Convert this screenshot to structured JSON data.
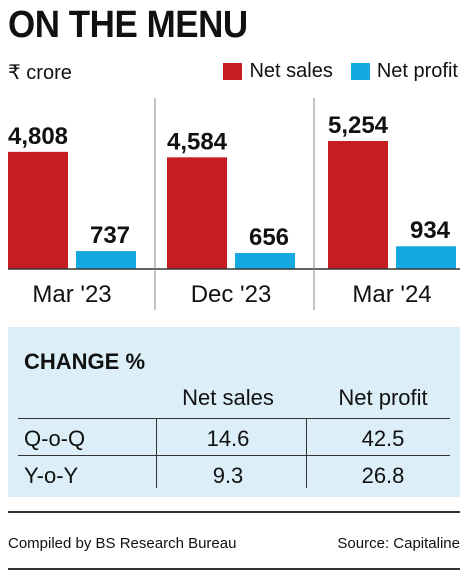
{
  "title": "ON THE MENU",
  "unit_label": "₹ crore",
  "legend": {
    "net_sales": "Net sales",
    "net_profit": "Net profit"
  },
  "colors": {
    "net_sales": "#c41e24",
    "net_profit": "#16a8e0",
    "box_bg": "#dceef8"
  },
  "chart_data": {
    "type": "bar",
    "categories": [
      "Mar '23",
      "Dec '23",
      "Mar '24"
    ],
    "series": [
      {
        "name": "Net sales",
        "values": [
          4808,
          4584,
          5254
        ],
        "labels": [
          "4,808",
          "4,584",
          "5,254"
        ]
      },
      {
        "name": "Net profit",
        "values": [
          737,
          656,
          934
        ],
        "labels": [
          "737",
          "656",
          "934"
        ]
      }
    ],
    "ylim": [
      0,
      5254
    ],
    "grid": false,
    "legend_position": "top-right"
  },
  "change_table": {
    "heading": "CHANGE %",
    "columns": [
      "Net sales",
      "Net profit"
    ],
    "rows": [
      {
        "label": "Q-o-Q",
        "net_sales": "14.6",
        "net_profit": "42.5"
      },
      {
        "label": "Y-o-Y",
        "net_sales": "9.3",
        "net_profit": "26.8"
      }
    ]
  },
  "footer": {
    "compiled": "Compiled by BS Research Bureau",
    "source": "Source: Capitaline"
  }
}
